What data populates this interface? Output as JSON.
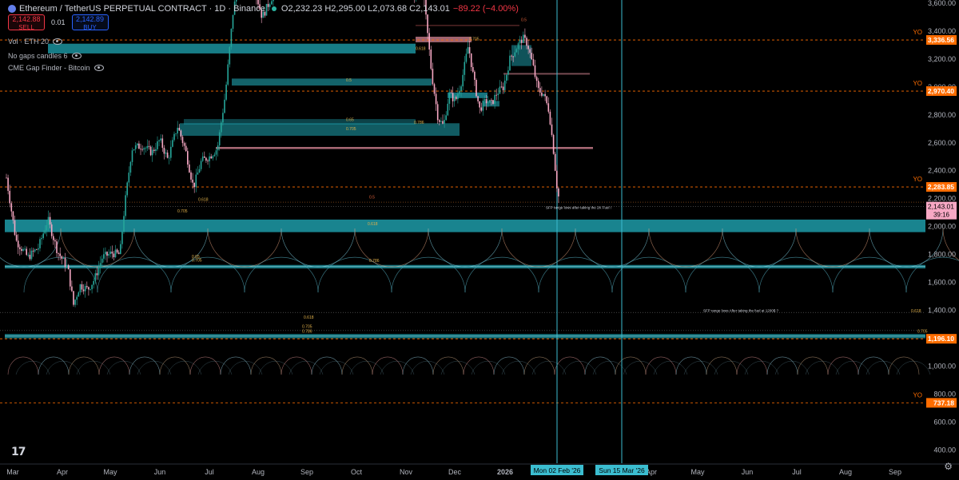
{
  "header": {
    "symbol": "Ethereum / TetherUS PERPETUAL CONTRACT · 1D · Binance",
    "ohlc": "O2,232.23 H2,295.00 L2,073.68 C2,143.01",
    "change": "−89.22 (−4.00%)"
  },
  "trade": {
    "sell_price": "2,142.88",
    "sell_label": "SELL",
    "qty": "0.01",
    "buy_price": "2,142.89",
    "buy_label": "BUY"
  },
  "indicators": [
    {
      "label": "Vol · ETH 20",
      "icon": "eye-icon"
    },
    {
      "label": "No gaps candles 6",
      "icon": "eye-icon"
    },
    {
      "label": "CME Gap Finder - Bitcoin",
      "icon": "eye-icon"
    }
  ],
  "price_axis": {
    "ticks": [
      "3,600.00",
      "3,400.00",
      "3,200.00",
      "3,000.00",
      "2,800.00",
      "2,600.00",
      "2,400.00",
      "2,200.00",
      "2,000.00",
      "1,800.00",
      "1,600.00",
      "1,400.00",
      "1,200.00",
      "1,000.00",
      "800.00",
      "600.00",
      "400.00"
    ],
    "tick_values": [
      3600,
      3400,
      3200,
      3000,
      2800,
      2600,
      2400,
      2200,
      2000,
      1800,
      1600,
      1400,
      1200,
      1000,
      800,
      600,
      400
    ]
  },
  "levels": [
    {
      "price": 3336.56,
      "label": "3,336.56",
      "tag": "YO",
      "color": "#ff6d00"
    },
    {
      "price": 2970.4,
      "label": "2,970.40",
      "tag": "YO",
      "color": "#ff6d00"
    },
    {
      "price": 2283.85,
      "label": "2,283.85",
      "tag": "YO",
      "color": "#ff6d00"
    },
    {
      "price": 1196.1,
      "label": "1,196.10",
      "tag": "",
      "color": "#ff6d00"
    },
    {
      "price": 737.18,
      "label": "737.18",
      "tag": "YO",
      "color": "#ff6d00"
    }
  ],
  "current": {
    "price": 2143.01,
    "label": "2,143.01",
    "countdown": "39:16",
    "color": "#f7a8c4"
  },
  "time_axis": {
    "labels": [
      "Mar",
      "Apr",
      "May",
      "Jun",
      "Jul",
      "Aug",
      "Sep",
      "Oct",
      "Nov",
      "Dec",
      "2026",
      "Feb",
      "Mar",
      "Apr",
      "May",
      "Jun",
      "Jul",
      "Aug",
      "Sep"
    ]
  },
  "verticals": [
    {
      "label": "Mon 02 Feb '26"
    },
    {
      "label": "Sun 15 Mar '26"
    }
  ],
  "annotations": {
    "sfp1": "SFP range lows after taking the 2K Fuel !",
    "sfp2": "SFP range lows After taking the fuel at 1200$ ?",
    "fibs": {
      "f05_top": "0.5",
      "f0705_top": "0.705",
      "f0618_top": "0.618",
      "f05_mid": "0.5",
      "f065_mid": "0.65",
      "f0786_mid": "0.786",
      "f0705_mid": "0.705",
      "f0618_a": "0.618",
      "f0705_a": "0.705",
      "f05_a": "0.5",
      "f0618_b": "0.618",
      "f065_c": "0.65",
      "f0705_c": "0.705",
      "f0786_c": "0.786",
      "f0618_d": "0.618",
      "f0705_d": "0.705",
      "f0786_d": "0.786",
      "f0618_e": "0.618",
      "f0705_e": "0.705"
    }
  },
  "colors": {
    "bull": "#26a69a",
    "bear": "#f7a8c4",
    "zone": "#1fa5b3",
    "zone_red": "#c87d8b",
    "level": "#ff6d00",
    "axis_text": "#b2b5be",
    "vline": "#3bbdd0"
  }
}
